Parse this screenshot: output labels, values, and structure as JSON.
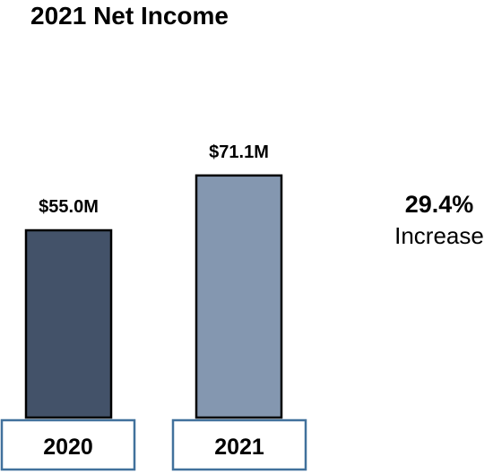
{
  "chart_data": {
    "type": "bar",
    "title": "2021 Net Income",
    "categories": [
      "2020",
      "2021"
    ],
    "values": [
      55.0,
      71.1
    ],
    "value_labels": [
      "$55.0M",
      "$71.1M"
    ],
    "unit": "$M",
    "ylim": [
      0,
      80
    ],
    "grid": false,
    "legend": "none",
    "bar_colors": [
      "#435269",
      "#8497B0"
    ],
    "bar_outline_color": "#000000",
    "category_box_border_color": "#41719C"
  },
  "callout": {
    "percent": "29.4%",
    "label": "Increase"
  }
}
